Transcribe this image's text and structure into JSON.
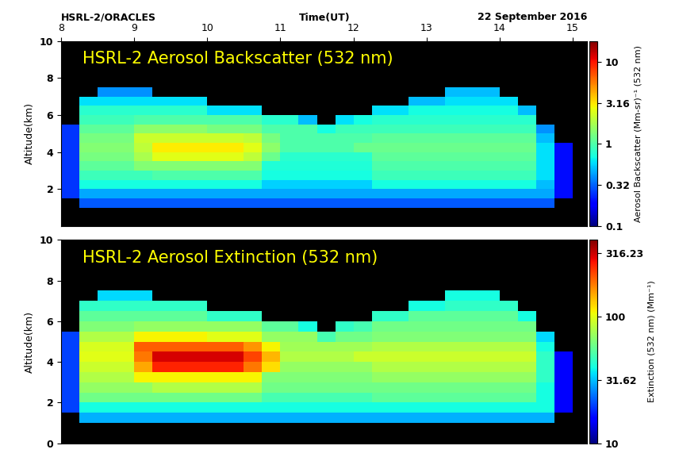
{
  "chart_data": [
    {
      "type": "heatmap",
      "title": "HSRL-2 Aerosol Backscatter (532 nm)",
      "annotations": [
        "HSRL-2/ORACLES",
        "22 September 2016"
      ],
      "x_label": "Time(UT)",
      "y_label": "Altitude(km)",
      "xlim": [
        8,
        15.2
      ],
      "xticks": [
        8,
        9,
        10,
        11,
        12,
        13,
        14,
        15
      ],
      "ylim": [
        0,
        10
      ],
      "yticks": [
        2,
        4,
        6,
        8,
        10
      ],
      "color": "jet",
      "x": [
        8,
        8.25,
        8.5,
        8.75,
        9,
        9.25,
        9.5,
        9.75,
        10,
        10.25,
        10.5,
        10.75,
        11,
        11.25,
        11.5,
        11.75,
        12,
        12.25,
        12.5,
        12.75,
        13,
        13.25,
        13.5,
        13.75,
        14,
        14.25,
        14.5,
        14.75,
        15
      ],
      "y": [
        1,
        1.5,
        2,
        2.5,
        3,
        3.5,
        4,
        4.5,
        5,
        5.5,
        6,
        6.5,
        7,
        7.5
      ],
      "cells": [
        [
          null,
          0.3,
          0.3,
          0.3,
          0.3,
          0.3,
          0.3,
          0.3,
          0.3,
          0.3,
          0.3,
          0.3,
          0.3,
          0.3,
          0.3,
          0.3,
          0.3,
          0.3,
          0.3,
          0.3,
          0.3,
          0.3,
          0.3,
          0.3,
          0.3,
          0.3,
          0.3,
          null
        ],
        [
          0.25,
          0.45,
          0.45,
          0.45,
          0.45,
          0.45,
          0.45,
          0.45,
          0.45,
          0.45,
          0.45,
          0.45,
          0.45,
          0.45,
          0.45,
          0.45,
          0.45,
          0.45,
          0.45,
          0.45,
          0.45,
          0.45,
          0.45,
          0.45,
          0.45,
          0.45,
          0.45,
          0.2
        ],
        [
          0.25,
          0.7,
          0.7,
          0.7,
          0.7,
          0.7,
          0.7,
          0.7,
          0.7,
          0.7,
          0.7,
          0.55,
          0.55,
          0.55,
          0.55,
          0.55,
          0.55,
          0.7,
          0.7,
          0.7,
          0.7,
          0.7,
          0.7,
          0.7,
          0.7,
          0.7,
          0.5,
          0.2
        ],
        [
          0.25,
          0.9,
          0.9,
          0.9,
          0.9,
          1.0,
          1.0,
          1.0,
          1.0,
          1.0,
          1.0,
          0.7,
          0.7,
          0.7,
          0.7,
          0.7,
          0.7,
          0.9,
          0.9,
          0.9,
          0.9,
          0.9,
          0.9,
          0.9,
          0.9,
          0.9,
          0.6,
          0.2
        ],
        [
          0.25,
          1.1,
          1.1,
          1.1,
          1.4,
          1.4,
          1.4,
          1.4,
          1.4,
          1.4,
          1.4,
          0.75,
          0.75,
          0.75,
          0.75,
          0.75,
          0.75,
          1.0,
          1.0,
          1.0,
          1.0,
          1.0,
          1.0,
          1.0,
          1.0,
          1.0,
          0.6,
          0.2
        ],
        [
          0.25,
          1.3,
          1.3,
          1.3,
          1.8,
          2.5,
          2.5,
          2.5,
          2.5,
          2.5,
          2.0,
          1.2,
          0.8,
          0.8,
          0.8,
          0.8,
          0.8,
          1.1,
          1.1,
          1.1,
          1.1,
          1.1,
          1.1,
          1.1,
          1.1,
          1.1,
          0.6,
          0.2
        ],
        [
          0.25,
          1.4,
          1.4,
          1.4,
          2.0,
          3.0,
          3.0,
          3.0,
          3.0,
          3.0,
          2.5,
          1.5,
          1.0,
          1.0,
          1.0,
          1.0,
          1.2,
          1.2,
          1.2,
          1.2,
          1.2,
          1.2,
          1.2,
          1.2,
          1.2,
          1.2,
          0.6,
          0.2
        ],
        [
          0.25,
          1.3,
          1.3,
          1.3,
          2.2,
          2.2,
          2.2,
          2.2,
          2.2,
          2.2,
          2.0,
          1.3,
          1.0,
          1.0,
          1.0,
          1.0,
          1.0,
          1.1,
          1.1,
          1.1,
          1.1,
          1.1,
          1.1,
          1.1,
          1.1,
          1.1,
          0.5,
          null
        ],
        [
          0.25,
          1.1,
          1.1,
          1.1,
          1.5,
          1.5,
          1.5,
          1.5,
          1.3,
          1.3,
          1.3,
          1.0,
          1.0,
          1.0,
          0.7,
          0.9,
          0.9,
          0.9,
          0.9,
          0.9,
          0.9,
          0.9,
          0.9,
          0.9,
          0.9,
          0.9,
          0.4,
          null
        ],
        [
          null,
          0.9,
          0.9,
          0.9,
          1.0,
          1.0,
          1.0,
          1.0,
          1.0,
          1.0,
          1.0,
          0.8,
          0.8,
          0.5,
          null,
          0.6,
          0.7,
          0.8,
          0.8,
          0.8,
          0.8,
          0.8,
          0.8,
          0.8,
          0.8,
          0.8,
          null,
          null
        ],
        [
          null,
          0.8,
          0.8,
          0.8,
          0.8,
          0.8,
          0.8,
          0.8,
          0.6,
          0.6,
          0.6,
          null,
          null,
          null,
          null,
          null,
          null,
          0.6,
          0.6,
          0.7,
          0.7,
          0.7,
          0.7,
          0.7,
          0.7,
          0.5,
          null,
          null
        ],
        [
          null,
          0.6,
          0.6,
          0.6,
          0.6,
          0.6,
          0.6,
          0.6,
          null,
          null,
          null,
          null,
          null,
          null,
          null,
          null,
          null,
          null,
          null,
          0.5,
          0.5,
          0.6,
          0.6,
          0.6,
          0.6,
          null,
          null,
          null
        ],
        [
          null,
          null,
          0.4,
          0.4,
          0.4,
          null,
          null,
          null,
          null,
          null,
          null,
          null,
          null,
          null,
          null,
          null,
          null,
          null,
          null,
          null,
          null,
          0.5,
          0.5,
          0.5,
          null,
          null,
          null,
          null
        ]
      ],
      "colorbar": {
        "label": "Aerosol Backscatter (Mm-sr)⁻¹ (532 nm)",
        "log": true,
        "range": [
          0.1,
          17.8
        ],
        "ticks": [
          0.1,
          0.32,
          1,
          3.16,
          10
        ]
      }
    },
    {
      "type": "heatmap",
      "title": "HSRL-2 Aerosol Extinction (532 nm)",
      "y_label": "Altitude(km)",
      "xlim": [
        8,
        15.2
      ],
      "ylim": [
        0,
        10
      ],
      "yticks": [
        0,
        2,
        4,
        6,
        8,
        10
      ],
      "tick_labels": "y",
      "color": "jet",
      "x": [
        8,
        8.25,
        8.5,
        8.75,
        9,
        9.25,
        9.5,
        9.75,
        10,
        10.25,
        10.5,
        10.75,
        11,
        11.25,
        11.5,
        11.75,
        12,
        12.25,
        12.5,
        12.75,
        13,
        13.25,
        13.5,
        13.75,
        14,
        14.25,
        14.5,
        14.75,
        15
      ],
      "y": [
        1,
        1.5,
        2,
        2.5,
        3,
        3.5,
        4,
        4.5,
        5,
        5.5,
        6,
        6.5,
        7,
        7.5
      ],
      "cells": [
        [
          null,
          30,
          30,
          30,
          30,
          30,
          30,
          30,
          30,
          30,
          30,
          30,
          30,
          30,
          30,
          30,
          30,
          30,
          30,
          30,
          30,
          30,
          30,
          30,
          30,
          30,
          30,
          null
        ],
        [
          20,
          40,
          40,
          40,
          40,
          40,
          40,
          40,
          40,
          40,
          40,
          40,
          40,
          40,
          40,
          40,
          40,
          40,
          40,
          40,
          40,
          40,
          40,
          40,
          40,
          40,
          40,
          15
        ],
        [
          20,
          60,
          60,
          60,
          60,
          60,
          60,
          60,
          60,
          60,
          60,
          50,
          50,
          50,
          50,
          50,
          50,
          55,
          55,
          55,
          55,
          55,
          55,
          55,
          55,
          55,
          40,
          15
        ],
        [
          20,
          70,
          70,
          70,
          70,
          80,
          80,
          80,
          80,
          80,
          80,
          60,
          60,
          60,
          60,
          60,
          60,
          60,
          60,
          60,
          60,
          60,
          60,
          60,
          60,
          60,
          40,
          15
        ],
        [
          20,
          80,
          80,
          80,
          110,
          110,
          110,
          110,
          110,
          110,
          110,
          65,
          65,
          65,
          65,
          65,
          65,
          70,
          70,
          70,
          70,
          70,
          70,
          70,
          70,
          70,
          45,
          15
        ],
        [
          20,
          90,
          90,
          90,
          150,
          250,
          250,
          250,
          250,
          250,
          180,
          120,
          70,
          70,
          70,
          70,
          70,
          80,
          80,
          80,
          80,
          80,
          80,
          80,
          80,
          80,
          45,
          15
        ],
        [
          20,
          100,
          100,
          100,
          180,
          300,
          300,
          300,
          300,
          300,
          220,
          140,
          80,
          80,
          80,
          80,
          90,
          90,
          90,
          90,
          90,
          90,
          90,
          90,
          90,
          90,
          45,
          15
        ],
        [
          20,
          95,
          95,
          95,
          200,
          200,
          200,
          200,
          200,
          200,
          160,
          110,
          75,
          75,
          75,
          75,
          75,
          80,
          80,
          80,
          80,
          80,
          80,
          80,
          80,
          80,
          40,
          null
        ],
        [
          20,
          80,
          80,
          80,
          110,
          110,
          110,
          110,
          100,
          100,
          100,
          70,
          70,
          70,
          50,
          60,
          60,
          65,
          65,
          65,
          65,
          65,
          65,
          65,
          65,
          65,
          35,
          null
        ],
        [
          null,
          65,
          65,
          65,
          70,
          70,
          70,
          70,
          70,
          70,
          70,
          55,
          55,
          40,
          null,
          45,
          50,
          60,
          60,
          60,
          60,
          60,
          60,
          60,
          60,
          60,
          null,
          null
        ],
        [
          null,
          55,
          55,
          55,
          55,
          55,
          55,
          55,
          45,
          45,
          45,
          null,
          null,
          null,
          null,
          null,
          null,
          45,
          45,
          55,
          55,
          55,
          55,
          55,
          55,
          40,
          null,
          null
        ],
        [
          null,
          45,
          45,
          45,
          45,
          45,
          45,
          45,
          null,
          null,
          null,
          null,
          null,
          null,
          null,
          null,
          null,
          null,
          null,
          40,
          40,
          45,
          45,
          45,
          45,
          null,
          null,
          null
        ],
        [
          null,
          null,
          35,
          35,
          35,
          null,
          null,
          null,
          null,
          null,
          null,
          null,
          null,
          null,
          null,
          null,
          null,
          null,
          null,
          null,
          null,
          40,
          40,
          40,
          null,
          null,
          null,
          null
        ]
      ],
      "colorbar": {
        "label": "Extinction (532 nm) (Mm⁻¹)",
        "log": true,
        "range": [
          10,
          400
        ],
        "ticks": [
          10,
          31.62,
          100,
          316.23
        ]
      }
    }
  ]
}
